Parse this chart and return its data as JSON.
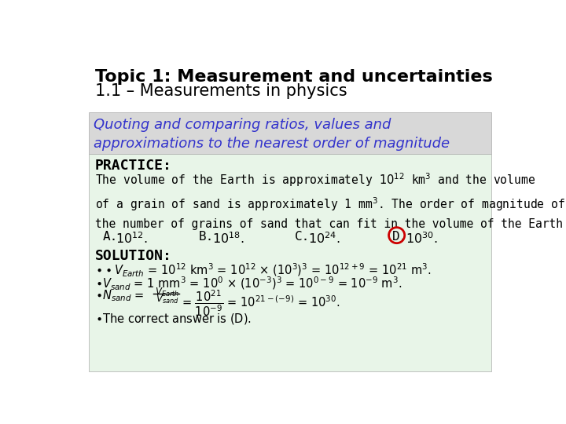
{
  "title_line1": "Topic 1: Measurement and uncertainties",
  "title_line2": "1.1 – Measurements in physics",
  "subtitle": "Quoting and comparing ratios, values and\napproximations to the nearest order of magnitude",
  "subtitle_color": "#3333cc",
  "subtitle_bg": "#d8d8d8",
  "content_bg": "#e8f5e8",
  "bg_color": "#ffffff",
  "practice_label": "PRACTICE:",
  "solution_label": "SOLUTION:",
  "answer_circle_color": "#cc0000"
}
